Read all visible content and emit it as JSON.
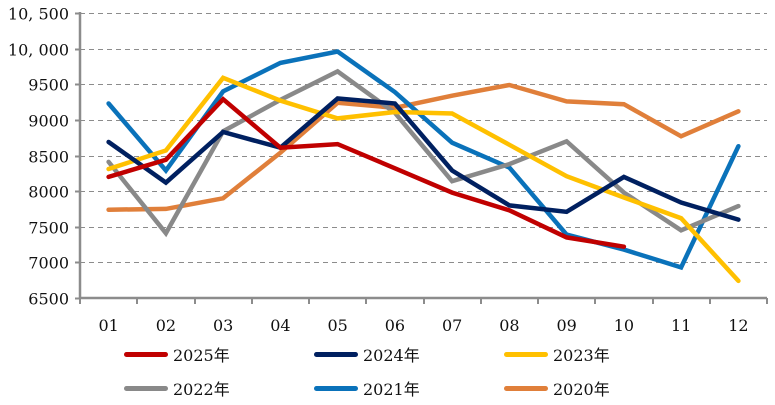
{
  "chart_data": {
    "type": "line",
    "title": "",
    "xlabel": "",
    "ylabel": "",
    "categories": [
      "01",
      "02",
      "03",
      "04",
      "05",
      "06",
      "07",
      "08",
      "09",
      "10",
      "11",
      "12"
    ],
    "ylim": [
      6500,
      10500
    ],
    "yticks": [
      6500,
      7000,
      7500,
      8000,
      8500,
      9000,
      9500,
      10000,
      10500
    ],
    "ytick_labels": [
      "6500",
      "7000",
      "7500",
      "8000",
      "8500",
      "9000",
      "9500",
      "10, 000",
      "10, 500"
    ],
    "grid": true,
    "legend_position": "bottom",
    "series": [
      {
        "name": "2025年",
        "color": "#C00000",
        "values": [
          8200,
          8440,
          9290,
          8610,
          8660,
          8320,
          7980,
          7730,
          7350,
          7220,
          null,
          null
        ]
      },
      {
        "name": "2024年",
        "color": "#002060",
        "values": [
          8690,
          8120,
          8830,
          8610,
          9300,
          9230,
          8290,
          7800,
          7710,
          8200,
          7840,
          7600
        ]
      },
      {
        "name": "2023年",
        "color": "#FFC000",
        "values": [
          8310,
          8570,
          9590,
          9270,
          9020,
          9110,
          9090,
          8650,
          8210,
          7910,
          7620,
          6740
        ]
      },
      {
        "name": "2022年",
        "color": "#898989",
        "values": [
          8410,
          7410,
          8840,
          9280,
          9680,
          9100,
          8140,
          8380,
          8700,
          7980,
          7450,
          7790
        ]
      },
      {
        "name": "2021年",
        "color": "#0A72BA",
        "values": [
          9230,
          8290,
          9400,
          9800,
          9960,
          9390,
          8680,
          8330,
          7390,
          7180,
          6930,
          8630
        ]
      },
      {
        "name": "2020年",
        "color": "#E07F3A",
        "values": [
          7740,
          7750,
          7900,
          8540,
          9240,
          9170,
          9340,
          9490,
          9260,
          9220,
          8770,
          9120
        ]
      }
    ]
  }
}
